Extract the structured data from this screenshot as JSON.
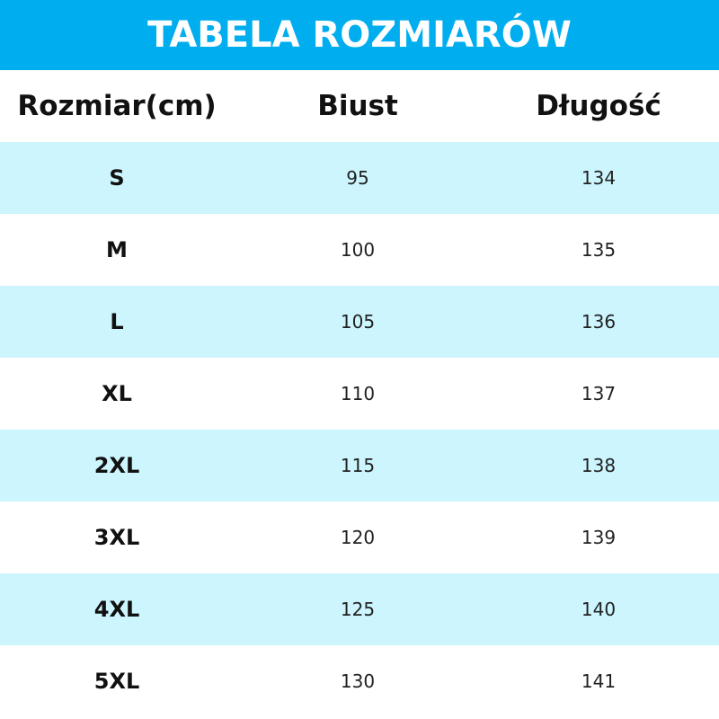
{
  "title": "TABELA ROZMIARÓW",
  "colors": {
    "banner": "#00aeef",
    "alt_row": "#ccf5fe"
  },
  "columns": [
    "Rozmiar(cm)",
    "Biust",
    "Długość"
  ],
  "rows": [
    [
      "S",
      "95",
      "134"
    ],
    [
      "M",
      "100",
      "135"
    ],
    [
      "L",
      "105",
      "136"
    ],
    [
      "XL",
      "110",
      "137"
    ],
    [
      "2XL",
      "115",
      "138"
    ],
    [
      "3XL",
      "120",
      "139"
    ],
    [
      "4XL",
      "125",
      "140"
    ],
    [
      "5XL",
      "130",
      "141"
    ]
  ]
}
